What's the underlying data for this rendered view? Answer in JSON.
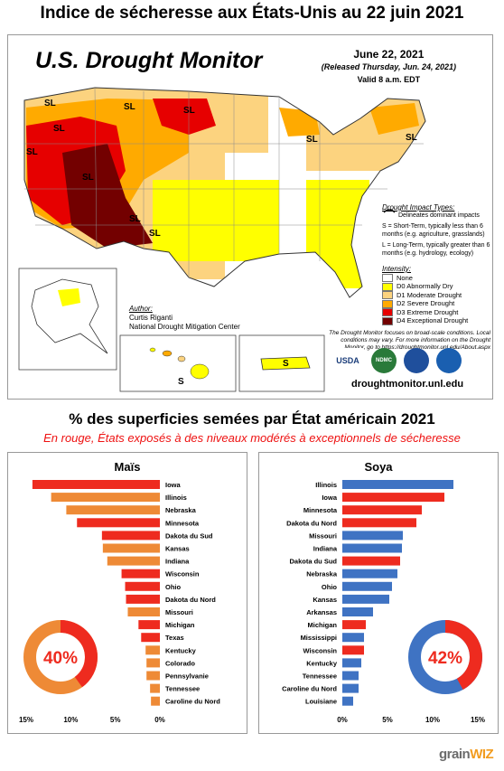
{
  "page_title": "Indice de sécheresse aux États-Unis au 22 juin 2021",
  "map": {
    "heading": "U.S. Drought Monitor",
    "date": "June 22, 2021",
    "released": "(Released Thursday, Jun. 24, 2021)",
    "valid": "Valid 8 a.m. EDT",
    "impact_title": "Drought Impact Types:",
    "impact_line": "Delineates dominant impacts",
    "impact_s": "S = Short-Term, typically less than 6 months (e.g. agriculture, grasslands)",
    "impact_l": "L = Long-Term, typically greater than 6 months (e.g. hydrology, ecology)",
    "intensity_title": "Intensity:",
    "intensity": [
      {
        "label": "None",
        "color": "#ffffff"
      },
      {
        "label": "D0 Abnormally Dry",
        "color": "#ffff00"
      },
      {
        "label": "D1 Moderate Drought",
        "color": "#fcd37f"
      },
      {
        "label": "D2 Severe Drought",
        "color": "#ffaa00"
      },
      {
        "label": "D3 Extreme Drought",
        "color": "#e60000"
      },
      {
        "label": "D4 Exceptional Drought",
        "color": "#730000"
      }
    ],
    "author_title": "Author:",
    "author_name": "Curtis Riganti",
    "author_org": "National Drought Mitigation Center",
    "notes": "The Drought Monitor focuses on broad-scale conditions. Local conditions may vary. For more information on the Drought Monitor, go to https://droughtmonitor.unl.edu/About.aspx",
    "website": "droughtmonitor.unl.edu",
    "logos": [
      "USDA",
      "NDMC",
      "",
      ""
    ],
    "region_labels": [
      "SL",
      "SL",
      "SL",
      "SL",
      "SL",
      "SL",
      "SL",
      "SL",
      "SL",
      "SL",
      "S",
      "S"
    ]
  },
  "subtitle": "% des superficies semées par État américain 2021",
  "subtitle_note": "En rouge, États exposés à des niveaux modérés à exceptionnels de sécheresse",
  "colors": {
    "red": "#ee2b1f",
    "orange": "#ee8a36",
    "blue": "#3f73c3",
    "ring_bg": "#ffffff"
  },
  "chart_data": [
    {
      "type": "bar",
      "title": "Maïs",
      "orientation": "horizontal",
      "xlim": [
        15,
        0
      ],
      "x_ticks": [
        "15%",
        "10%",
        "5%",
        "0%"
      ],
      "categories": [
        "Iowa",
        "Illinois",
        "Nebraska",
        "Minnesota",
        "Dakota du Sud",
        "Kansas",
        "Indiana",
        "Wisconsin",
        "Ohio",
        "Dakota du Nord",
        "Missouri",
        "Michigan",
        "Texas",
        "Kentucky",
        "Colorado",
        "Pennsylvanie",
        "Tennessee",
        "Caroline du Nord"
      ],
      "values": [
        14.3,
        12.2,
        10.5,
        9.3,
        6.5,
        6.4,
        5.9,
        4.3,
        3.9,
        3.8,
        3.6,
        2.4,
        2.1,
        1.6,
        1.5,
        1.5,
        1.1,
        1.0
      ],
      "drought": [
        true,
        false,
        false,
        true,
        true,
        false,
        false,
        true,
        true,
        true,
        false,
        true,
        true,
        false,
        false,
        false,
        false,
        false
      ],
      "donut": {
        "label": "40%",
        "value": 40
      }
    },
    {
      "type": "bar",
      "title": "Soya",
      "orientation": "horizontal",
      "xlim": [
        0,
        15
      ],
      "x_ticks": [
        "0%",
        "5%",
        "10%",
        "15%"
      ],
      "categories": [
        "Illinois",
        "Iowa",
        "Minnesota",
        "Dakota du Nord",
        "Missouri",
        "Indiana",
        "Dakota du Sud",
        "Nebraska",
        "Ohio",
        "Kansas",
        "Arkansas",
        "Michigan",
        "Mississippi",
        "Wisconsin",
        "Kentucky",
        "Tennessee",
        "Caroline du Nord",
        "Louisiane"
      ],
      "values": [
        12.3,
        11.3,
        8.8,
        8.2,
        6.7,
        6.6,
        6.4,
        6.1,
        5.5,
        5.2,
        3.4,
        2.6,
        2.4,
        2.4,
        2.1,
        1.8,
        1.8,
        1.2
      ],
      "drought": [
        false,
        true,
        true,
        true,
        false,
        false,
        true,
        false,
        false,
        false,
        false,
        true,
        false,
        true,
        false,
        false,
        false,
        false
      ],
      "donut": {
        "label": "42%",
        "value": 42
      }
    }
  ],
  "brand": {
    "part1": "grain",
    "part2": "WIZ"
  }
}
